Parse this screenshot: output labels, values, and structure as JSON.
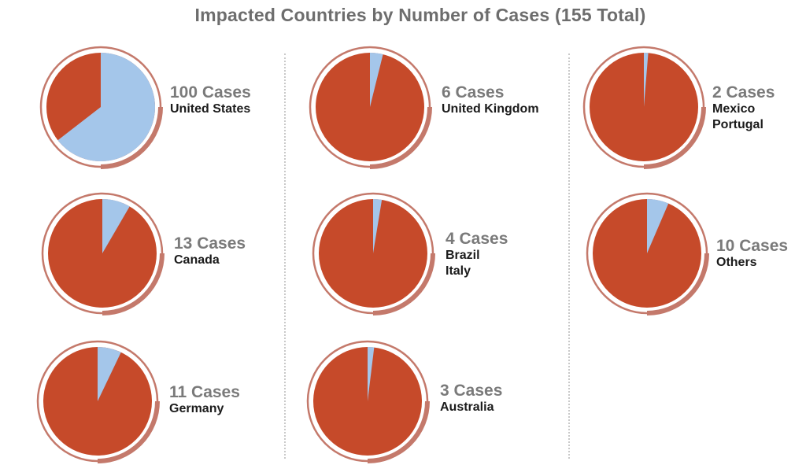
{
  "title": "Impacted Countries by Number of Cases (155 Total)",
  "colors": {
    "slice": "#a4c6ea",
    "remainder": "#c64a2a",
    "ring": "#c4796b"
  },
  "chart_data": {
    "type": "pie",
    "title": "Impacted Countries by Number of Cases (155 Total)",
    "total": 155,
    "charts": [
      {
        "cases_label": "100 Cases",
        "countries": [
          "United States"
        ],
        "value": 100
      },
      {
        "cases_label": "13 Cases",
        "countries": [
          "Canada"
        ],
        "value": 13
      },
      {
        "cases_label": "11 Cases",
        "countries": [
          "Germany"
        ],
        "value": 11
      },
      {
        "cases_label": "6 Cases",
        "countries": [
          "United Kingdom"
        ],
        "value": 6
      },
      {
        "cases_label": "4 Cases",
        "countries": [
          "Brazil",
          "Italy"
        ],
        "value": 4
      },
      {
        "cases_label": "3 Cases",
        "countries": [
          "Australia"
        ],
        "value": 3
      },
      {
        "cases_label": "2 Cases",
        "countries": [
          "Mexico",
          "Portugal"
        ],
        "value": 2
      },
      {
        "cases_label": "10 Cases",
        "countries": [
          "Others"
        ],
        "value": 10
      }
    ]
  }
}
